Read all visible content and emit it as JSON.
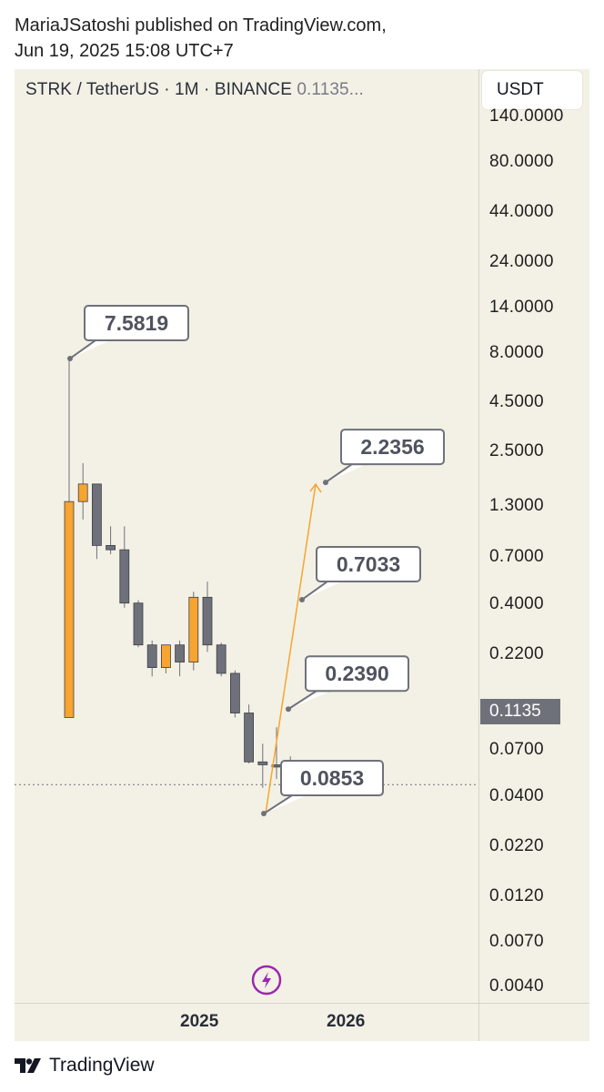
{
  "header": {
    "line1": "MariaJSatoshi published on TradingView.com,",
    "line2": "Jun 19, 2025 15:08 UTC+7"
  },
  "chart": {
    "symbol_line": "STRK / TetherUS · 1M · BINANCE",
    "price_snippet": "0.1135...",
    "currency_button": "USDT",
    "last_price_label": "0.1135",
    "y_tick_labels": [
      "140.0000",
      "80.0000",
      "44.0000",
      "24.0000",
      "14.0000",
      "8.0000",
      "4.5000",
      "2.5000",
      "1.3000",
      "0.7000",
      "0.4000",
      "0.2200",
      "0.1135",
      "0.0700",
      "0.0400",
      "0.0220",
      "0.0120",
      "0.0070",
      "0.0040"
    ],
    "x_tick_labels": [
      "2025",
      "2026"
    ]
  },
  "footer": {
    "brand": "TradingView"
  },
  "colors": {
    "bull": "#f7a430",
    "bear": "#6f717a",
    "panel_bg": "#f3f1e5",
    "arrow": "#f7a430",
    "badge_bg": "#ffffff",
    "badge_border": "#6f717a",
    "event_icon": "#9c27b0"
  },
  "chart_data": {
    "type": "candlestick",
    "title": "STRK / TetherUS · 1M · BINANCE",
    "y_scale": "log",
    "ylim": [
      0.0035,
      160
    ],
    "y_ticks": [
      140,
      80,
      44,
      24,
      14,
      8,
      4.5,
      2.5,
      1.3,
      0.7,
      0.4,
      0.22,
      0.07,
      0.04,
      0.022,
      0.012,
      0.007,
      0.004
    ],
    "x_ticks": [
      "2025",
      "2026"
    ],
    "last_price": 0.1135,
    "candles": [
      {
        "open": 0.22,
        "high": 7.5819,
        "low": 0.22,
        "close": 1.85
      },
      {
        "open": 1.85,
        "high": 2.7,
        "low": 1.55,
        "close": 2.2
      },
      {
        "open": 2.2,
        "high": 2.2,
        "low": 1.05,
        "close": 1.2
      },
      {
        "open": 1.2,
        "high": 1.45,
        "low": 1.1,
        "close": 1.15
      },
      {
        "open": 1.15,
        "high": 1.45,
        "low": 0.65,
        "close": 0.68
      },
      {
        "open": 0.68,
        "high": 0.7,
        "low": 0.44,
        "close": 0.45
      },
      {
        "open": 0.45,
        "high": 0.47,
        "low": 0.33,
        "close": 0.36
      },
      {
        "open": 0.36,
        "high": 0.45,
        "low": 0.34,
        "close": 0.45
      },
      {
        "open": 0.45,
        "high": 0.47,
        "low": 0.33,
        "close": 0.38
      },
      {
        "open": 0.38,
        "high": 0.76,
        "low": 0.35,
        "close": 0.72
      },
      {
        "open": 0.72,
        "high": 0.84,
        "low": 0.42,
        "close": 0.45
      },
      {
        "open": 0.45,
        "high": 0.46,
        "low": 0.33,
        "close": 0.34
      },
      {
        "open": 0.34,
        "high": 0.35,
        "low": 0.22,
        "close": 0.23
      },
      {
        "open": 0.23,
        "high": 0.25,
        "low": 0.14,
        "close": 0.142
      },
      {
        "open": 0.142,
        "high": 0.17,
        "low": 0.11,
        "close": 0.138
      },
      {
        "open": 0.138,
        "high": 0.2,
        "low": 0.12,
        "close": 0.135
      },
      {
        "open": 0.135,
        "high": 0.15,
        "low": 0.1,
        "close": 0.1135
      }
    ],
    "annotations": [
      {
        "label": "7.5819",
        "value": 7.5819
      },
      {
        "label": "2.2356",
        "value": 2.2356
      },
      {
        "label": "0.7033",
        "value": 0.7033
      },
      {
        "label": "0.2390",
        "value": 0.239
      },
      {
        "label": "0.0853",
        "value": 0.0853
      }
    ],
    "projection": {
      "from": 0.0853,
      "to": 2.2356
    }
  }
}
